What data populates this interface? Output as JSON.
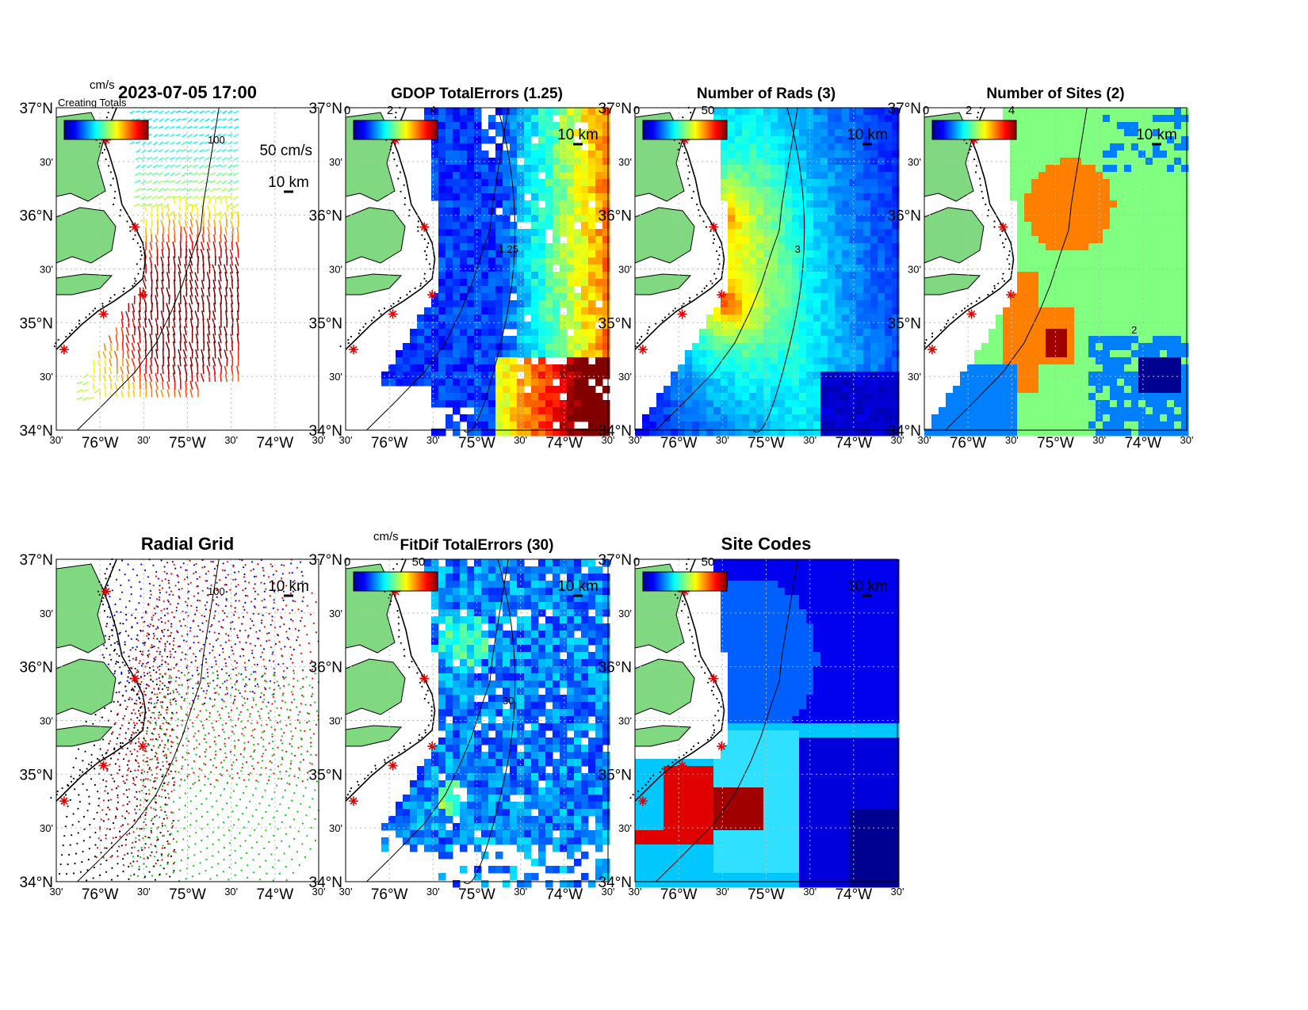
{
  "figure": {
    "panels": [
      {
        "id": "currents",
        "title": "2023-07-05 17:00",
        "title_style": "big",
        "kind": "vectors",
        "colorbar_unit": "cm/s",
        "colorbar_ticks": [],
        "overlapped_text": "Creating Totals",
        "scale_label": "50 cm/s",
        "km_label": "10 km",
        "isobath_label": "100"
      },
      {
        "id": "gdop",
        "title": "GDOP TotalErrors (1.25)",
        "kind": "field",
        "colormap": "jet",
        "colorbar_unit": "",
        "colorbar_ticks": [
          "0",
          "2",
          "4"
        ],
        "km_label": "10 km",
        "contour_label": "1.25"
      },
      {
        "id": "nrads",
        "title": "Number of Rads (3)",
        "kind": "field",
        "colormap": "jet",
        "colorbar_unit": "",
        "colorbar_ticks": [
          "0",
          "50"
        ],
        "km_label": "10 km",
        "contour_label": "3"
      },
      {
        "id": "nsites",
        "title": "Number of Sites (2)",
        "kind": "sites",
        "colormap": "jet",
        "colorbar_unit": "",
        "colorbar_ticks": [
          "0",
          "2",
          "4"
        ],
        "km_label": "10 km",
        "contour_label": "2"
      },
      {
        "id": "radgrid",
        "title": "Radial Grid",
        "title_style": "big",
        "kind": "radgrid",
        "colorbar_ticks": [],
        "km_label": "10 km",
        "isobath_label": "100"
      },
      {
        "id": "fitdif",
        "title": "FitDif TotalErrors (30)",
        "kind": "field",
        "colormap": "jet",
        "colorbar_unit": "cm/s",
        "colorbar_ticks": [
          "0",
          "50"
        ],
        "km_label": "10 km",
        "contour_label": "30"
      },
      {
        "id": "sitecodes",
        "title": "Site Codes",
        "title_style": "big",
        "kind": "codes",
        "colormap": "jet",
        "colorbar_unit": "",
        "colorbar_ticks": [
          "0",
          "50"
        ],
        "km_label": "10 km"
      }
    ],
    "lat_ticks": [
      "37°N",
      "30'",
      "36°N",
      "30'",
      "35°N",
      "30'",
      "34°N"
    ],
    "lon_ticks": [
      "30'",
      "76°W",
      "30'",
      "75°W",
      "30'",
      "74°W",
      "30'"
    ],
    "colors": {
      "land": "#80d880",
      "coast": "#000000",
      "site_marker": "#e00000",
      "grid_line": "#bbbbbb"
    }
  },
  "chart_data": [
    {
      "type": "heatmap",
      "title": "2023-07-05 17:00",
      "variable": "surface current vectors",
      "units": "cm/s",
      "xlim": [
        -76.5,
        -73.5
      ],
      "ylim": [
        34.0,
        37.0
      ],
      "max_speed_region": {
        "lon": -75.0,
        "lat": 35.5,
        "speed": "high (red)"
      },
      "sites": [
        [
          -75.95,
          36.4
        ],
        [
          -75.55,
          35.83
        ],
        [
          -75.47,
          35.52
        ],
        [
          -75.92,
          35.23
        ],
        [
          -76.48,
          34.75
        ]
      ]
    },
    {
      "type": "heatmap",
      "title": "GDOP TotalErrors (1.25)",
      "colorbar": [
        0,
        4
      ],
      "contour_level": 1.25,
      "xlim": [
        -76.5,
        -73.5
      ],
      "ylim": [
        34.0,
        37.0
      ]
    },
    {
      "type": "heatmap",
      "title": "Number of Rads (3)",
      "colorbar": [
        0,
        50
      ],
      "contour_level": 3,
      "xlim": [
        -76.5,
        -73.5
      ],
      "ylim": [
        34.0,
        37.0
      ]
    },
    {
      "type": "heatmap",
      "title": "Number of Sites (2)",
      "colorbar": [
        0,
        4
      ],
      "contour_level": 2,
      "values_present": [
        1,
        2,
        3,
        4
      ],
      "xlim": [
        -76.5,
        -73.5
      ],
      "ylim": [
        34.0,
        37.0
      ]
    },
    {
      "type": "scatter",
      "title": "Radial Grid",
      "series": [
        {
          "name": "",
          "color": "blue"
        },
        {
          "name": "",
          "color": "red"
        },
        {
          "name": "",
          "color": "green"
        },
        {
          "name": "",
          "color": "black"
        }
      ],
      "xlim": [
        -76.5,
        -73.5
      ],
      "ylim": [
        34.0,
        37.0
      ]
    },
    {
      "type": "heatmap",
      "title": "FitDif TotalErrors (30)",
      "units": "cm/s",
      "colorbar": [
        0,
        50
      ],
      "contour_level": 30,
      "xlim": [
        -76.5,
        -73.5
      ],
      "ylim": [
        34.0,
        37.0
      ]
    },
    {
      "type": "heatmap",
      "title": "Site Codes",
      "colorbar": [
        0,
        50
      ],
      "xlim": [
        -76.5,
        -73.5
      ],
      "ylim": [
        34.0,
        37.0
      ]
    }
  ]
}
